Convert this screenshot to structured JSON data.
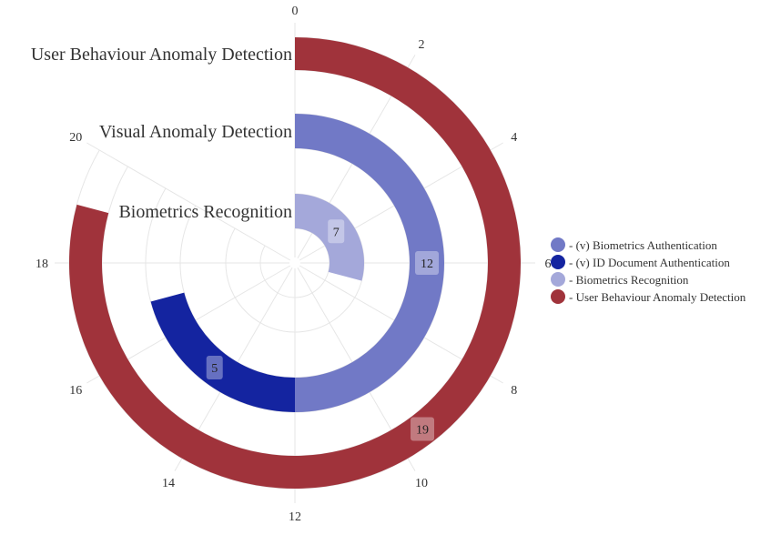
{
  "chart_data": {
    "type": "radial-bar",
    "title": "",
    "angular_axis": {
      "min": 0,
      "max": 24,
      "ticks": [
        0,
        2,
        4,
        6,
        8,
        10,
        12,
        14,
        16,
        18,
        20
      ]
    },
    "categories": [
      "Biometrics Recognition",
      "Visual Anomaly Detection",
      "User Behaviour Anomaly Detection"
    ],
    "series": [
      {
        "name": "- (v) Biometrics Authentication",
        "color": "#7179c6",
        "values": [
          null,
          12,
          null
        ]
      },
      {
        "name": "- (v) ID Document Authentication",
        "color": "#1424a0",
        "values": [
          null,
          5,
          null
        ]
      },
      {
        "name": "- Biometrics Recognition",
        "color": "#a4a8da",
        "values": [
          7,
          null,
          null
        ]
      },
      {
        "name": "- User Behaviour Anomaly Detection",
        "color": "#a0333b",
        "values": [
          null,
          null,
          19
        ]
      }
    ],
    "data_labels": [
      {
        "series": 2,
        "category": 0,
        "text": "7"
      },
      {
        "series": 0,
        "category": 1,
        "text": "12"
      },
      {
        "series": 1,
        "category": 1,
        "text": "5"
      },
      {
        "series": 3,
        "category": 2,
        "text": "19"
      }
    ],
    "legend": {
      "position": "right"
    },
    "grid": true
  }
}
